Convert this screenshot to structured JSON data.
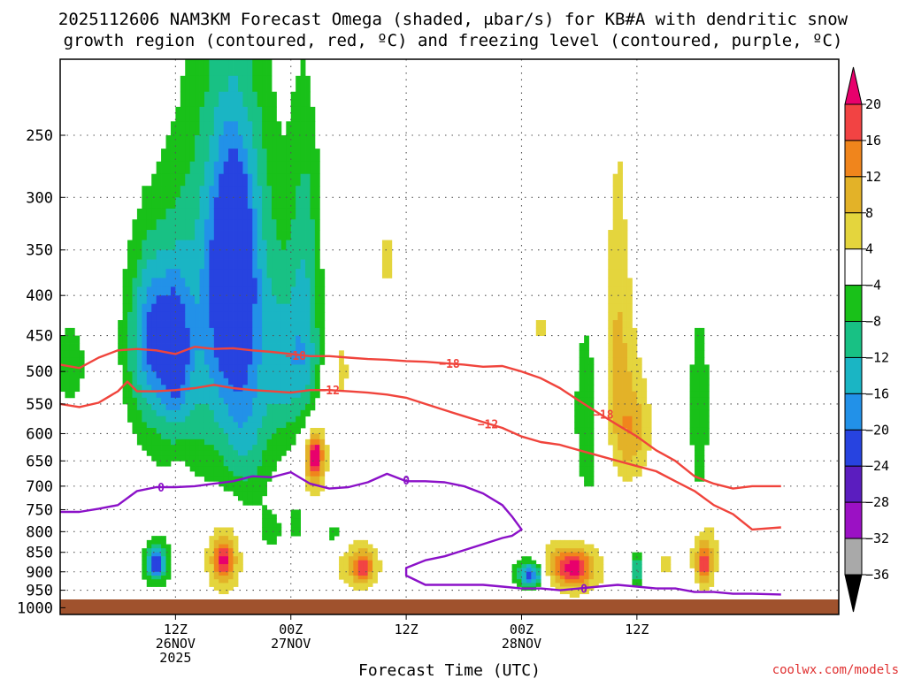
{
  "chart_data": {
    "type": "heatmap",
    "title_line1": "2025112606 NAM3KM Forecast Omega (shaded, μbar/s) for KB#A with dendritic snow",
    "title_line2": "growth region (contoured, red, ºC) and freezing level (contoured, purple, ºC)",
    "xlabel": "Forecast Time (UTC)",
    "credit": "coolwx.com/models",
    "x_unit": "hours since 2025-11-26 06Z",
    "xlim": [
      -6,
      75
    ],
    "y_unit": "hPa",
    "ylim": [
      1020,
      200
    ],
    "y_ticks": [
      250,
      300,
      350,
      400,
      450,
      500,
      550,
      600,
      650,
      700,
      750,
      800,
      850,
      900,
      950,
      1000
    ],
    "x_ticks": [
      {
        "hour": 6,
        "lines": [
          "12Z",
          "26NOV",
          "2025"
        ]
      },
      {
        "hour": 18,
        "lines": [
          "00Z",
          "27NOV"
        ]
      },
      {
        "hour": 30,
        "lines": [
          "12Z"
        ]
      },
      {
        "hour": 42,
        "lines": [
          "00Z",
          "28NOV"
        ]
      },
      {
        "hour": 54,
        "lines": [
          "12Z"
        ]
      }
    ],
    "colorbar": {
      "labels": [
        "20",
        "16",
        "12",
        "8",
        "4",
        "−4",
        "−8",
        "−12",
        "−16",
        "−20",
        "−24",
        "−28",
        "−32",
        "−36"
      ],
      "colors": [
        "#e8006c",
        "#f24343",
        "#f0851c",
        "#e3b228",
        "#e4d53d",
        "#ffffff",
        "#19c119",
        "#18c184",
        "#1ab5c4",
        "#2291e8",
        "#2743e0",
        "#5b1dbf",
        "#9b11c4",
        "#a9a9a9",
        "#000000"
      ]
    },
    "series": [
      {
        "name": "-18C isotherm",
        "label": "−18",
        "color": "#f0443c",
        "x": [
          -6,
          -4,
          -2,
          0,
          2,
          4,
          6,
          8,
          10,
          12,
          14,
          16,
          18,
          20,
          22,
          24,
          26,
          28,
          30,
          32,
          34,
          36,
          38,
          40,
          42,
          44,
          46,
          48,
          50,
          52,
          54,
          56,
          58,
          60,
          62,
          64,
          66,
          69
        ],
        "y": [
          490,
          495,
          480,
          470,
          468,
          470,
          475,
          465,
          468,
          467,
          470,
          472,
          475,
          478,
          478,
          480,
          482,
          483,
          485,
          486,
          488,
          490,
          493,
          492,
          500,
          510,
          525,
          545,
          565,
          585,
          605,
          630,
          650,
          680,
          695,
          705,
          700,
          700
        ]
      },
      {
        "name": "-12C isotherm",
        "label": "−12",
        "color": "#f0443c",
        "x": [
          -6,
          -4,
          -2,
          0,
          1,
          2,
          4,
          6,
          8,
          10,
          12,
          14,
          16,
          18,
          20,
          22,
          24,
          26,
          28,
          30,
          32,
          34,
          36,
          38,
          40,
          42,
          44,
          46,
          48,
          50,
          52,
          54,
          56,
          58,
          60,
          62,
          64,
          66,
          69
        ],
        "y": [
          550,
          555,
          548,
          530,
          515,
          530,
          530,
          528,
          525,
          520,
          525,
          528,
          530,
          532,
          528,
          528,
          530,
          532,
          535,
          540,
          550,
          560,
          570,
          580,
          590,
          605,
          615,
          620,
          630,
          640,
          650,
          660,
          670,
          690,
          710,
          740,
          760,
          795,
          790
        ]
      },
      {
        "name": "0C freezing level",
        "label": "0",
        "color": "#8b11c8",
        "x": [
          -6,
          -4,
          -2,
          0,
          2,
          4,
          6,
          8,
          10,
          12,
          14,
          16,
          18,
          20,
          22,
          24,
          26,
          28,
          30,
          32,
          34,
          36,
          38,
          40,
          41,
          42,
          41,
          40,
          38,
          36,
          34,
          32,
          30,
          30,
          32,
          34,
          36,
          38,
          40,
          42,
          44,
          46,
          48,
          50,
          52,
          54,
          56,
          58,
          60,
          62,
          64,
          66,
          69
        ],
        "y": [
          755,
          755,
          748,
          740,
          710,
          702,
          702,
          700,
          695,
          690,
          680,
          682,
          672,
          695,
          705,
          702,
          692,
          675,
          690,
          690,
          692,
          700,
          715,
          740,
          765,
          795,
          810,
          815,
          830,
          845,
          860,
          870,
          890,
          910,
          935,
          935,
          935,
          935,
          940,
          945,
          945,
          950,
          945,
          940,
          935,
          940,
          945,
          945,
          955,
          955,
          960,
          960,
          962
        ]
      }
    ],
    "label_positions_hint": "labels drawn along lines at data coords",
    "line_labels": [
      {
        "series": 0,
        "x": 18.5,
        "y": 477,
        "text": "−18"
      },
      {
        "series": 0,
        "x": 34.5,
        "y": 488,
        "text": "−18"
      },
      {
        "series": 0,
        "x": 50.5,
        "y": 567,
        "text": "−18"
      },
      {
        "series": 1,
        "x": 22,
        "y": 528,
        "text": "−12"
      },
      {
        "series": 1,
        "x": 38.5,
        "y": 583,
        "text": "−12"
      },
      {
        "series": 2,
        "x": 4.5,
        "y": 702,
        "text": "0"
      },
      {
        "series": 2,
        "x": 30,
        "y": 688,
        "text": "0"
      },
      {
        "series": 2,
        "x": 48.5,
        "y": 945,
        "text": "0"
      }
    ],
    "omega_blobs": [
      {
        "x": -5,
        "y": 490,
        "dx": 1.5,
        "dy": 55,
        "v": -6
      },
      {
        "x": 3,
        "y": 470,
        "dx": 2.2,
        "dy": 110,
        "v": -7
      },
      {
        "x": 3.5,
        "y": 450,
        "dx": 1.4,
        "dy": 70,
        "v": -11
      },
      {
        "x": 6,
        "y": 480,
        "dx": 1.8,
        "dy": 120,
        "v": -7
      },
      {
        "x": 6,
        "y": 470,
        "dx": 1.0,
        "dy": 60,
        "v": -12
      },
      {
        "x": 11,
        "y": 430,
        "dx": 4.0,
        "dy": 180,
        "v": -8
      },
      {
        "x": 12,
        "y": 400,
        "dx": 3.0,
        "dy": 150,
        "v": -12
      },
      {
        "x": 12,
        "y": 360,
        "dx": 1.5,
        "dy": 80,
        "v": -15
      },
      {
        "x": 13.5,
        "y": 600,
        "dx": 1.6,
        "dy": 100,
        "v": -6
      },
      {
        "x": 17,
        "y": 490,
        "dx": 1.2,
        "dy": 80,
        "v": -8
      },
      {
        "x": 19.5,
        "y": 380,
        "dx": 1.2,
        "dy": 120,
        "v": -10
      },
      {
        "x": 19.5,
        "y": 500,
        "dx": 1.5,
        "dy": 60,
        "v": -7
      },
      {
        "x": 20.5,
        "y": 650,
        "dx": 0.9,
        "dy": 55,
        "v": 11
      },
      {
        "x": 20.5,
        "y": 640,
        "dx": 0.5,
        "dy": 25,
        "v": 17
      },
      {
        "x": 23,
        "y": 500,
        "dx": 1.3,
        "dy": 60,
        "v": 5
      },
      {
        "x": 28,
        "y": 360,
        "dx": 0.5,
        "dy": 40,
        "v": 5
      },
      {
        "x": 6.5,
        "y": 720,
        "dx": 0.7,
        "dy": 50,
        "v": 5
      },
      {
        "x": 1.5,
        "y": 775,
        "dx": 1.2,
        "dy": 40,
        "v": 4
      },
      {
        "x": 4,
        "y": 875,
        "dx": 1.1,
        "dy": 45,
        "v": -12
      },
      {
        "x": 4,
        "y": 880,
        "dx": 0.5,
        "dy": 20,
        "v": -17
      },
      {
        "x": 11,
        "y": 860,
        "dx": 1.6,
        "dy": 80,
        "v": 8
      },
      {
        "x": 11,
        "y": 870,
        "dx": 0.7,
        "dy": 35,
        "v": 14
      },
      {
        "x": 16,
        "y": 800,
        "dx": 1.0,
        "dy": 40,
        "v": -5
      },
      {
        "x": 18.5,
        "y": 780,
        "dx": 0.4,
        "dy": 40,
        "v": -6
      },
      {
        "x": 22.5,
        "y": 810,
        "dx": 1.0,
        "dy": 30,
        "v": -6
      },
      {
        "x": 25,
        "y": 880,
        "dx": 1.8,
        "dy": 55,
        "v": 8
      },
      {
        "x": 25.5,
        "y": 890,
        "dx": 0.7,
        "dy": 25,
        "v": 13
      },
      {
        "x": 28,
        "y": 815,
        "dx": 0.6,
        "dy": 15,
        "v": -5
      },
      {
        "x": 43,
        "y": 900,
        "dx": 1.6,
        "dy": 40,
        "v": -8
      },
      {
        "x": 43,
        "y": 910,
        "dx": 0.8,
        "dy": 20,
        "v": -16
      },
      {
        "x": 44,
        "y": 440,
        "dx": 0.4,
        "dy": 50,
        "v": 5
      },
      {
        "x": 45,
        "y": 880,
        "dx": 1.2,
        "dy": 35,
        "v": 6
      },
      {
        "x": 47.5,
        "y": 890,
        "dx": 2.4,
        "dy": 55,
        "v": 9
      },
      {
        "x": 47.5,
        "y": 890,
        "dx": 1.2,
        "dy": 30,
        "v": 14
      },
      {
        "x": 49,
        "y": 560,
        "dx": 1.3,
        "dy": 140,
        "v": -7
      },
      {
        "x": 52,
        "y": 350,
        "dx": 0.9,
        "dy": 170,
        "v": 4
      },
      {
        "x": 52,
        "y": 490,
        "dx": 1.8,
        "dy": 100,
        "v": 6
      },
      {
        "x": 53.5,
        "y": 600,
        "dx": 1.4,
        "dy": 60,
        "v": 9
      },
      {
        "x": 54,
        "y": 895,
        "dx": 0.5,
        "dy": 30,
        "v": -12
      },
      {
        "x": 57,
        "y": 880,
        "dx": 0.7,
        "dy": 30,
        "v": 5
      },
      {
        "x": 60.5,
        "y": 300,
        "dx": 1.0,
        "dy": 80,
        "v": 5
      },
      {
        "x": 60.5,
        "y": 550,
        "dx": 0.8,
        "dy": 150,
        "v": -7
      },
      {
        "x": 61,
        "y": 850,
        "dx": 1.3,
        "dy": 70,
        "v": 7
      },
      {
        "x": 61,
        "y": 880,
        "dx": 0.5,
        "dy": 35,
        "v": 14
      }
    ]
  }
}
